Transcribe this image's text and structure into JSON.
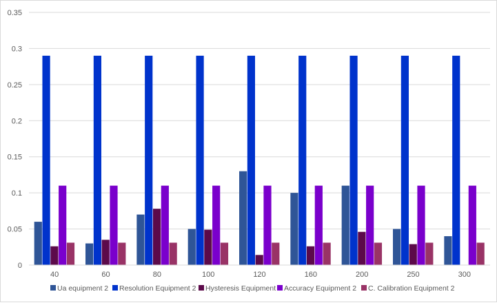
{
  "chart_data": {
    "type": "bar",
    "title": "",
    "xlabel": "",
    "ylabel": "",
    "ylim": [
      0,
      0.35
    ],
    "yticks": [
      0,
      0.05,
      0.1,
      0.15,
      0.2,
      0.25,
      0.3,
      0.35
    ],
    "ytick_labels": [
      "0",
      "0.05",
      "0.1",
      "0.15",
      "0.2",
      "0.25",
      "0.3",
      "0.35"
    ],
    "categories": [
      "40",
      "60",
      "80",
      "100",
      "120",
      "160",
      "200",
      "250",
      "300"
    ],
    "grid": true,
    "legend_position": "bottom",
    "series": [
      {
        "name": "Ua equipment 2",
        "color": "#2f5597",
        "values": [
          0.06,
          0.03,
          0.07,
          0.05,
          0.13,
          0.1,
          0.11,
          0.05,
          0.04
        ]
      },
      {
        "name": "Resolution Equipment 2",
        "color": "#0033cc",
        "values": [
          0.29,
          0.29,
          0.29,
          0.29,
          0.29,
          0.29,
          0.29,
          0.29,
          0.29
        ]
      },
      {
        "name": "Hysteresis Equipment 2",
        "color": "#5c0a4a",
        "values": [
          0.026,
          0.035,
          0.078,
          0.049,
          0.014,
          0.026,
          0.046,
          0.029,
          0
        ]
      },
      {
        "name": "Accuracy Equipment 2",
        "color": "#7a00cc",
        "values": [
          0.11,
          0.11,
          0.11,
          0.11,
          0.11,
          0.11,
          0.11,
          0.11,
          0.11
        ]
      },
      {
        "name": "C. Calibration Equipment 2",
        "color": "#993366",
        "values": [
          0.031,
          0.031,
          0.031,
          0.031,
          0.031,
          0.031,
          0.031,
          0.031,
          0.031
        ]
      }
    ]
  }
}
